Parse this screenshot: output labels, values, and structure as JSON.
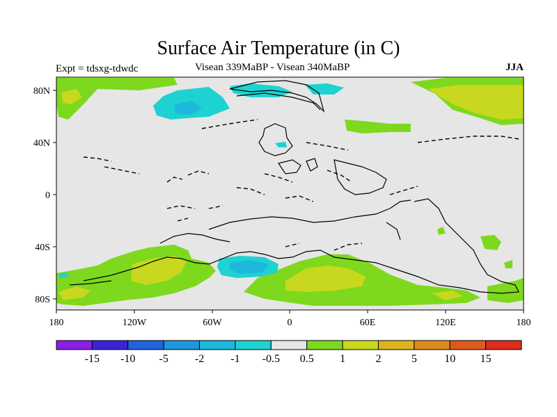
{
  "header": {
    "title": "Surface Air Temperature (in C)",
    "experiment": "Expt = tdsxg-tdwdc",
    "comparison": "Visean 339MaBP - Visean  340MaBP",
    "season": "JJA"
  },
  "map": {
    "x_ticks": [
      "180",
      "120W",
      "60W",
      "0",
      "60E",
      "120E",
      "180"
    ],
    "y_ticks": [
      "80N",
      "40N",
      "0",
      "40S",
      "80S"
    ],
    "background_color": "#e6e6e6"
  },
  "colorbar": {
    "labels": [
      "-15",
      "-10",
      "-5",
      "-2",
      "-1",
      "-0.5",
      "0.5",
      "1",
      "2",
      "5",
      "10",
      "15"
    ],
    "colors": [
      "#8a1fe6",
      "#3b24d6",
      "#1f64dc",
      "#1e96dc",
      "#1eb8dc",
      "#1ed2d2",
      "#e6e6e6",
      "#7ed81e",
      "#c8d81e",
      "#dcb41e",
      "#dc8c1e",
      "#dc5a1e",
      "#dc2d1e"
    ]
  }
}
